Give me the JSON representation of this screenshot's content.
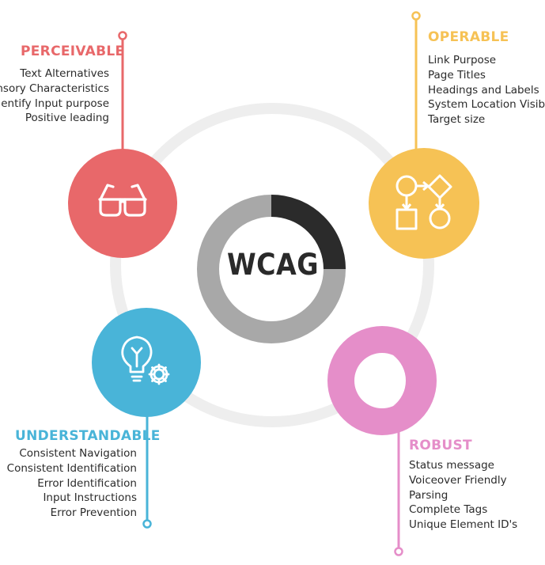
{
  "center": {
    "label": "WCAG",
    "ring_colors": {
      "dark": "#2b2b2b",
      "light": "#a8a8a8"
    },
    "dark_fraction": 0.25
  },
  "principles": [
    {
      "key": "perceivable",
      "title": "PERCEIVABLE",
      "color": "#e8686a",
      "icon": "glasses-icon",
      "items": [
        "Text Alternatives",
        "Sensory Characteristics",
        "Identify Input purpose",
        "Positive leading"
      ]
    },
    {
      "key": "operable",
      "title": "OPERABLE",
      "color": "#f6c255",
      "icon": "flowchart-icon",
      "items": [
        "Link Purpose",
        "Page Titles",
        "Headings and Labels",
        "System Location Visible",
        "Target size"
      ]
    },
    {
      "key": "understandable",
      "title": "UNDERSTANDABLE",
      "color": "#49b4d8",
      "icon": "lightbulb-gear-icon",
      "items": [
        "Consistent Navigation",
        "Consistent Identification",
        "Error Identification",
        "Input Instructions",
        "Error Prevention"
      ]
    },
    {
      "key": "robust",
      "title": "ROBUST",
      "color": "#e58ec9",
      "icon": "moon-icon",
      "items": [
        "Status message",
        "Voiceover Friendly",
        "Parsing",
        "Complete Tags",
        "Unique Element ID's"
      ]
    }
  ]
}
